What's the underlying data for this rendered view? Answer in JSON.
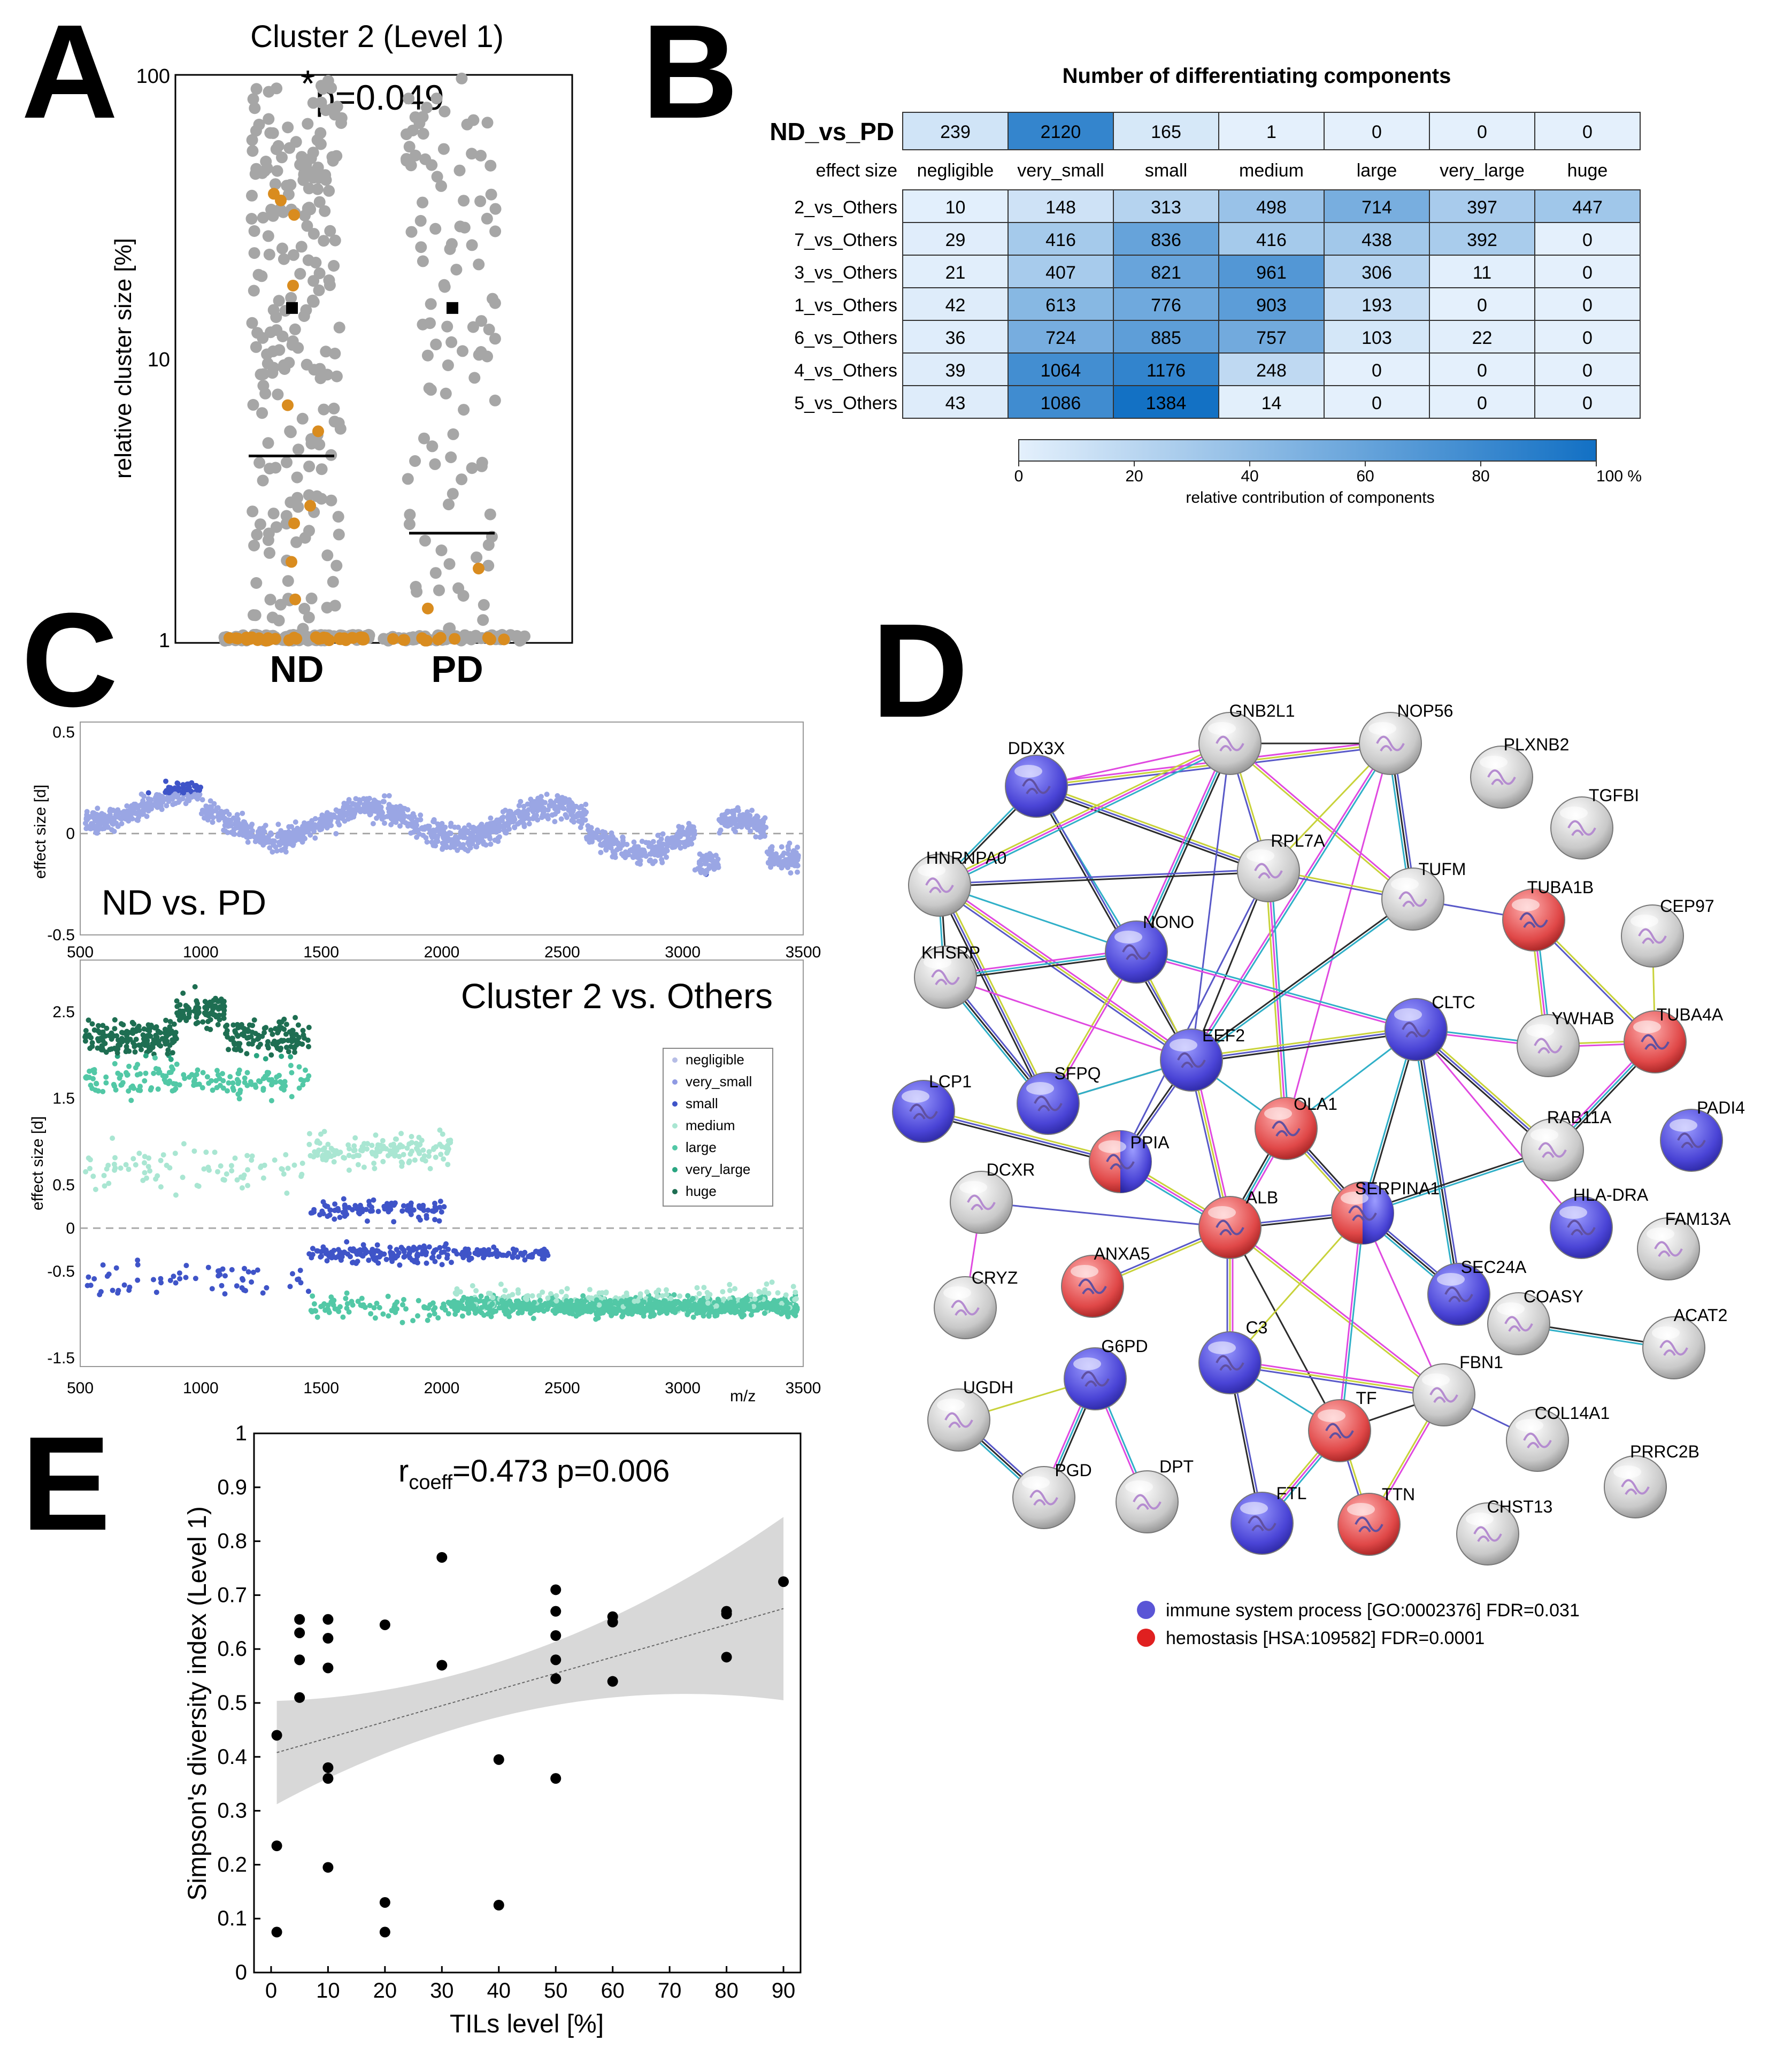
{
  "panels": {
    "A": "A",
    "B": "B",
    "C": "C",
    "D": "D",
    "E": "E"
  },
  "panelA": {
    "title": "Cluster 2 (Level 1)",
    "ylabel": "relative cluster size [%]",
    "yticks": [
      "1",
      "10",
      "100"
    ],
    "pvalue": "p=0.049",
    "star": "*",
    "groups": [
      "ND",
      "PD"
    ],
    "means": [
      15,
      15
    ],
    "medians": [
      4.5,
      2.4
    ],
    "colors": {
      "gray": "#a6a6a6",
      "orange": "#d98c1f"
    }
  },
  "panelB": {
    "title": "Number of differentiating components",
    "effect_label": "effect size",
    "columns": [
      "negligible",
      "very_small",
      "small",
      "medium",
      "large",
      "very_large",
      "huge"
    ],
    "top_row": {
      "label": "ND_vs_PD",
      "values": [
        239,
        2120,
        165,
        1,
        0,
        0,
        0
      ]
    },
    "rows": [
      {
        "label": "2_vs_Others",
        "values": [
          10,
          148,
          313,
          498,
          714,
          397,
          447
        ]
      },
      {
        "label": "7_vs_Others",
        "values": [
          29,
          416,
          836,
          416,
          438,
          392,
          0
        ]
      },
      {
        "label": "3_vs_Others",
        "values": [
          21,
          407,
          821,
          961,
          306,
          11,
          0
        ]
      },
      {
        "label": "1_vs_Others",
        "values": [
          42,
          613,
          776,
          903,
          193,
          0,
          0
        ]
      },
      {
        "label": "6_vs_Others",
        "values": [
          36,
          724,
          885,
          757,
          103,
          22,
          0
        ]
      },
      {
        "label": "4_vs_Others",
        "values": [
          39,
          1064,
          1176,
          248,
          0,
          0,
          0
        ]
      },
      {
        "label": "5_vs_Others",
        "values": [
          43,
          1086,
          1384,
          14,
          0,
          0,
          0
        ]
      }
    ],
    "colorbar_ticks": [
      "0",
      "20",
      "40",
      "60",
      "80",
      "100 %"
    ],
    "colorbar_label": "relative contribution of components"
  },
  "chart_data": [
    {
      "type": "scatter",
      "title": "ND vs. PD",
      "ylabel": "effect size [d]",
      "xlim": [
        500,
        3500
      ],
      "ylim": [
        -0.5,
        0.55
      ],
      "xticks": [
        "500",
        "1000",
        "1500",
        "2000",
        "2500",
        "3000",
        "3500"
      ],
      "yticks": [
        "-0.5",
        "0",
        "0.5"
      ]
    },
    {
      "type": "scatter",
      "title": "Cluster 2 vs. Others",
      "ylabel": "effect size [d]",
      "xlabel": "m/z",
      "xlim": [
        500,
        3500
      ],
      "ylim": [
        -1.6,
        3.1
      ],
      "xticks": [
        "500",
        "1000",
        "1500",
        "2000",
        "2500",
        "3000",
        "3500"
      ],
      "yticks": [
        "-1.5",
        "-0.5",
        "0",
        "0.5",
        "1.5",
        "2.5"
      ],
      "legend": [
        "negligible",
        "very_small",
        "small",
        "medium",
        "large",
        "very_large",
        "huge"
      ],
      "legend_colors": [
        "#b6bde6",
        "#8f9ae3",
        "#3f54c8",
        "#a9e6d2",
        "#52c8a6",
        "#2aa581",
        "#1e6e52"
      ]
    },
    {
      "type": "scatter",
      "title": "r_coeff=0.473 p=0.006",
      "xlabel": "TILs level [%]",
      "ylabel": "Simpson's diversity index (Level 1)",
      "xlim": [
        -3,
        93
      ],
      "ylim": [
        0,
        1
      ],
      "xticks": [
        "0",
        "10",
        "20",
        "30",
        "40",
        "50",
        "60",
        "70",
        "80",
        "90"
      ],
      "yticks": [
        "0",
        "0.1",
        "0.2",
        "0.3",
        "0.4",
        "0.5",
        "0.6",
        "0.7",
        "0.8",
        "0.9",
        "1"
      ],
      "points": [
        [
          1,
          0.44
        ],
        [
          1,
          0.235
        ],
        [
          1,
          0.075
        ],
        [
          5,
          0.655
        ],
        [
          5,
          0.63
        ],
        [
          5,
          0.58
        ],
        [
          5,
          0.51
        ],
        [
          10,
          0.655
        ],
        [
          10,
          0.62
        ],
        [
          10,
          0.565
        ],
        [
          10,
          0.38
        ],
        [
          10,
          0.36
        ],
        [
          10,
          0.195
        ],
        [
          20,
          0.645
        ],
        [
          20,
          0.13
        ],
        [
          20,
          0.075
        ],
        [
          30,
          0.77
        ],
        [
          30,
          0.57
        ],
        [
          40,
          0.395
        ],
        [
          40,
          0.125
        ],
        [
          50,
          0.71
        ],
        [
          50,
          0.67
        ],
        [
          50,
          0.625
        ],
        [
          50,
          0.58
        ],
        [
          50,
          0.545
        ],
        [
          50,
          0.36
        ],
        [
          60,
          0.66
        ],
        [
          60,
          0.65
        ],
        [
          60,
          0.54
        ],
        [
          80,
          0.67
        ],
        [
          80,
          0.665
        ],
        [
          80,
          0.585
        ],
        [
          90,
          0.725
        ]
      ],
      "fit": {
        "intercept": 0.405,
        "slope": 0.003
      },
      "rlabel": "r",
      "rsub": "coeff",
      "rvalue": "=0.473 p=0.006"
    }
  ],
  "panelD": {
    "legend": [
      {
        "text": "immune system process [GO:0002376] FDR=0.031",
        "color": "#5a55d6"
      },
      {
        "text": "hemostasis [HSA:109582] FDR=0.0001",
        "color": "#e02020"
      }
    ],
    "nodes": [
      {
        "id": "DDX3X",
        "c": "b"
      },
      {
        "id": "GNB2L1",
        "c": "w"
      },
      {
        "id": "NOP56",
        "c": "w"
      },
      {
        "id": "PLXNB2",
        "c": "w"
      },
      {
        "id": "TGFBI",
        "c": "w"
      },
      {
        "id": "HNRNPA0",
        "c": "w"
      },
      {
        "id": "RPL7A",
        "c": "w"
      },
      {
        "id": "TUFM",
        "c": "w"
      },
      {
        "id": "TUBA1B",
        "c": "r"
      },
      {
        "id": "CEP97",
        "c": "w"
      },
      {
        "id": "NONO",
        "c": "b"
      },
      {
        "id": "KHSRP",
        "c": "w"
      },
      {
        "id": "CLTC",
        "c": "b"
      },
      {
        "id": "YWHAB",
        "c": "w"
      },
      {
        "id": "TUBA4A",
        "c": "r"
      },
      {
        "id": "EEF2",
        "c": "b"
      },
      {
        "id": "LCP1",
        "c": "b"
      },
      {
        "id": "SFPQ",
        "c": "b"
      },
      {
        "id": "OLA1",
        "c": "r"
      },
      {
        "id": "PADI4",
        "c": "b"
      },
      {
        "id": "RAB11A",
        "c": "w"
      },
      {
        "id": "PPIA",
        "c": "rb"
      },
      {
        "id": "DCXR",
        "c": "w"
      },
      {
        "id": "SERPINA1",
        "c": "rb"
      },
      {
        "id": "ALB",
        "c": "r"
      },
      {
        "id": "FAM13A",
        "c": "w"
      },
      {
        "id": "HLA-DRA",
        "c": "b"
      },
      {
        "id": "ANXA5",
        "c": "r"
      },
      {
        "id": "CRYZ",
        "c": "w"
      },
      {
        "id": "SEC24A",
        "c": "b"
      },
      {
        "id": "COASY",
        "c": "w"
      },
      {
        "id": "ACAT2",
        "c": "w"
      },
      {
        "id": "C3",
        "c": "b"
      },
      {
        "id": "G6PD",
        "c": "b"
      },
      {
        "id": "FBN1",
        "c": "w"
      },
      {
        "id": "UGDH",
        "c": "w"
      },
      {
        "id": "TF",
        "c": "r"
      },
      {
        "id": "COL14A1",
        "c": "w"
      },
      {
        "id": "PRRC2B",
        "c": "w"
      },
      {
        "id": "PGD",
        "c": "w"
      },
      {
        "id": "DPT",
        "c": "w"
      },
      {
        "id": "FTL",
        "c": "b"
      },
      {
        "id": "TTN",
        "c": "r"
      },
      {
        "id": "CHST13",
        "c": "w"
      }
    ]
  }
}
